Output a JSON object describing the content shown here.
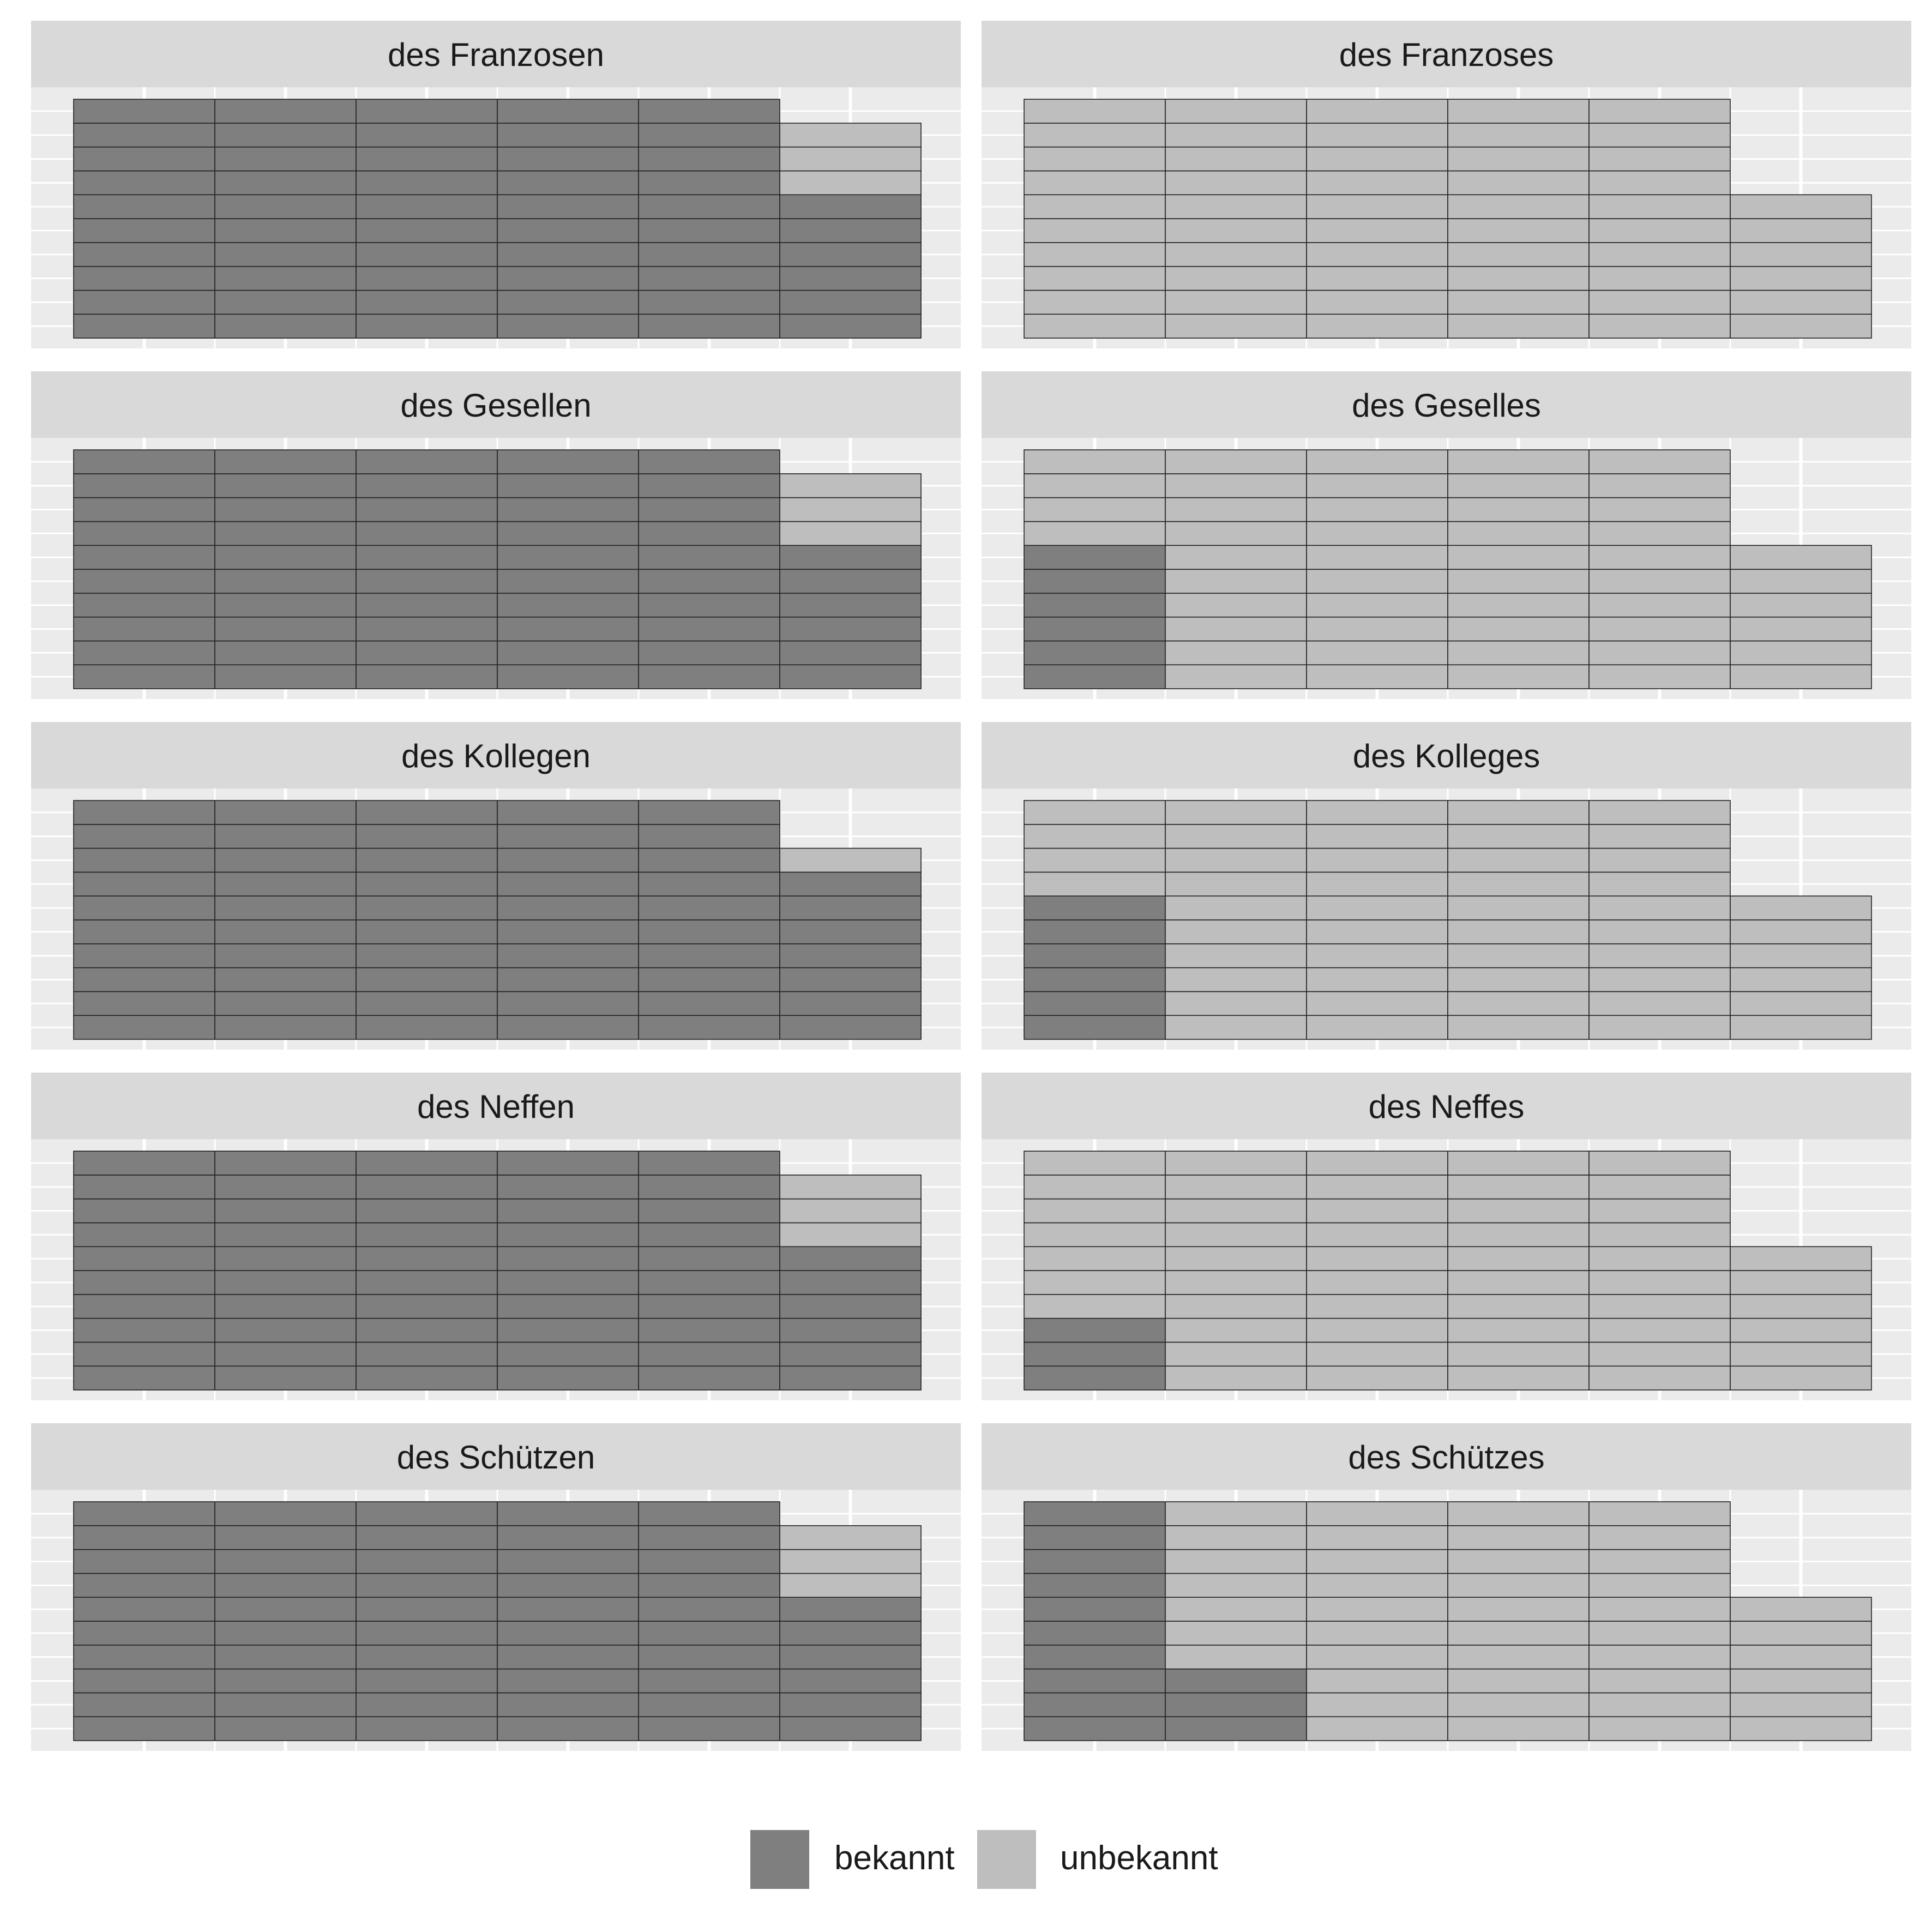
{
  "chart_data": {
    "type": "waffle",
    "grid": "on",
    "legend_position": "bottom",
    "colors": {
      "bekannt": "#7f7f7f",
      "unbekannt": "#bebebe",
      "panel_background": "#ebebeb",
      "strip_background": "#d9d9d9",
      "gridline": "#ffffff",
      "tile_border": "#222222"
    },
    "legend": [
      {
        "key": "bekannt",
        "label": "bekannt"
      },
      {
        "key": "unbekannt",
        "label": "unbekannt"
      }
    ],
    "panels": [
      {
        "title": "des Franzosen",
        "bekannt": 56,
        "unbekannt": 3
      },
      {
        "title": "des Franzoses",
        "bekannt": 0,
        "unbekannt": 56
      },
      {
        "title": "des Gesellen",
        "bekannt": 56,
        "unbekannt": 3
      },
      {
        "title": "des Geselles",
        "bekannt": 6,
        "unbekannt": 50
      },
      {
        "title": "des Kollegen",
        "bekannt": 57,
        "unbekannt": 1
      },
      {
        "title": "des Kolleges",
        "bekannt": 6,
        "unbekannt": 50
      },
      {
        "title": "des Neffen",
        "bekannt": 56,
        "unbekannt": 3
      },
      {
        "title": "des Neffes",
        "bekannt": 3,
        "unbekannt": 53
      },
      {
        "title": "des Schützen",
        "bekannt": 56,
        "unbekannt": 3
      },
      {
        "title": "des Schützes",
        "bekannt": 13,
        "unbekannt": 43
      }
    ]
  }
}
